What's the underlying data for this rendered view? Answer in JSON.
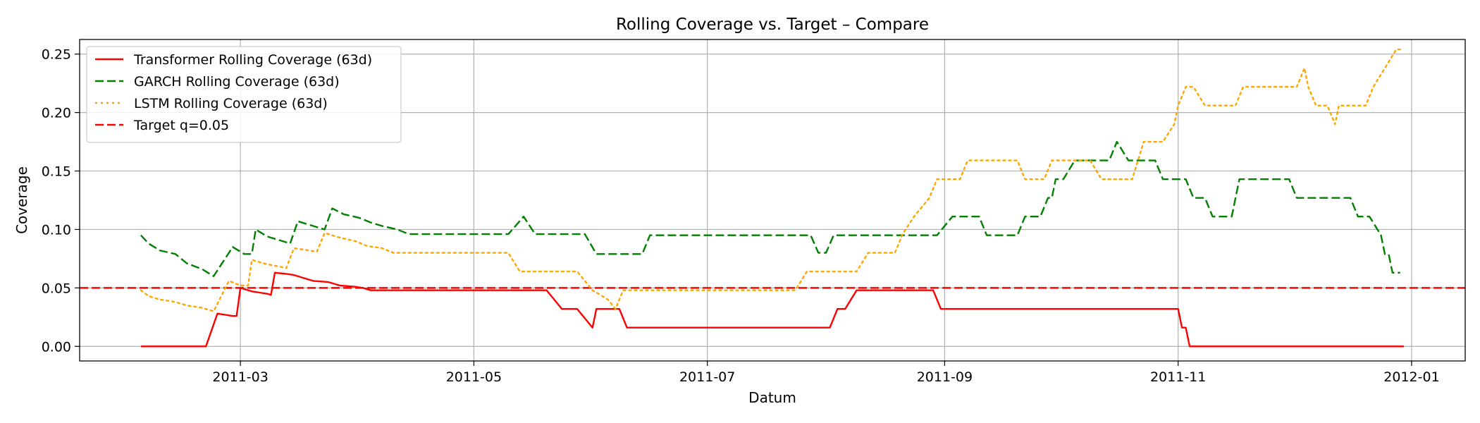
{
  "chart_data": {
    "type": "line",
    "title": "Rolling Coverage vs. Target – Compare",
    "xlabel": "Datum",
    "ylabel": "Coverage",
    "xlim": [
      "2011-01-18",
      "2012-01-15"
    ],
    "ylim": [
      -0.0125,
      0.2625
    ],
    "grid": true,
    "legend_position": "upper-left",
    "x_ticks": [
      {
        "date": "2011-03-01",
        "label": "2011-03"
      },
      {
        "date": "2011-05-01",
        "label": "2011-05"
      },
      {
        "date": "2011-07-01",
        "label": "2011-07"
      },
      {
        "date": "2011-09-01",
        "label": "2011-09"
      },
      {
        "date": "2011-11-01",
        "label": "2011-11"
      },
      {
        "date": "2012-01-01",
        "label": "2012-01"
      }
    ],
    "y_ticks": [
      {
        "value": 0.0,
        "label": "0.00"
      },
      {
        "value": 0.05,
        "label": "0.05"
      },
      {
        "value": 0.1,
        "label": "0.10"
      },
      {
        "value": 0.15,
        "label": "0.15"
      },
      {
        "value": 0.2,
        "label": "0.20"
      },
      {
        "value": 0.25,
        "label": "0.25"
      }
    ],
    "series": [
      {
        "name": "Transformer Rolling Coverage (63d)",
        "color": "#ff0000",
        "style": "solid",
        "points": [
          [
            "2011-02-03",
            0.0
          ],
          [
            "2011-02-20",
            0.0
          ],
          [
            "2011-02-23",
            0.028
          ],
          [
            "2011-02-25",
            0.027
          ],
          [
            "2011-02-27",
            0.026
          ],
          [
            "2011-02-28",
            0.026
          ],
          [
            "2011-03-01",
            0.05
          ],
          [
            "2011-03-04",
            0.047
          ],
          [
            "2011-03-06",
            0.046
          ],
          [
            "2011-03-08",
            0.045
          ],
          [
            "2011-03-09",
            0.044
          ],
          [
            "2011-03-10",
            0.063
          ],
          [
            "2011-03-13",
            0.062
          ],
          [
            "2011-03-15",
            0.061
          ],
          [
            "2011-03-18",
            0.058
          ],
          [
            "2011-03-20",
            0.056
          ],
          [
            "2011-03-24",
            0.055
          ],
          [
            "2011-03-27",
            0.052
          ],
          [
            "2011-03-31",
            0.051
          ],
          [
            "2011-04-02",
            0.05
          ],
          [
            "2011-04-04",
            0.048
          ],
          [
            "2011-05-20",
            0.048
          ],
          [
            "2011-05-24",
            0.032
          ],
          [
            "2011-05-28",
            0.032
          ],
          [
            "2011-06-01",
            0.016
          ],
          [
            "2011-06-02",
            0.032
          ],
          [
            "2011-06-08",
            0.032
          ],
          [
            "2011-06-10",
            0.016
          ],
          [
            "2011-08-02",
            0.016
          ],
          [
            "2011-08-04",
            0.032
          ],
          [
            "2011-08-06",
            0.032
          ],
          [
            "2011-08-09",
            0.048
          ],
          [
            "2011-08-29",
            0.048
          ],
          [
            "2011-08-31",
            0.032
          ],
          [
            "2011-11-01",
            0.032
          ],
          [
            "2011-11-02",
            0.016
          ],
          [
            "2011-11-03",
            0.016
          ],
          [
            "2011-11-04",
            0.0
          ],
          [
            "2011-12-30",
            0.0
          ]
        ]
      },
      {
        "name": "GARCH Rolling Coverage (63d)",
        "color": "#008000",
        "style": "dashed",
        "points": [
          [
            "2011-02-03",
            0.095
          ],
          [
            "2011-02-05",
            0.088
          ],
          [
            "2011-02-08",
            0.082
          ],
          [
            "2011-02-12",
            0.079
          ],
          [
            "2011-02-15",
            0.071
          ],
          [
            "2011-02-19",
            0.066
          ],
          [
            "2011-02-22",
            0.06
          ],
          [
            "2011-02-27",
            0.085
          ],
          [
            "2011-03-02",
            0.079
          ],
          [
            "2011-03-04",
            0.079
          ],
          [
            "2011-03-05",
            0.1
          ],
          [
            "2011-03-08",
            0.094
          ],
          [
            "2011-03-11",
            0.091
          ],
          [
            "2011-03-14",
            0.088
          ],
          [
            "2011-03-16",
            0.107
          ],
          [
            "2011-03-20",
            0.103
          ],
          [
            "2011-03-23",
            0.1
          ],
          [
            "2011-03-25",
            0.118
          ],
          [
            "2011-03-28",
            0.113
          ],
          [
            "2011-04-01",
            0.11
          ],
          [
            "2011-04-04",
            0.106
          ],
          [
            "2011-04-07",
            0.103
          ],
          [
            "2011-04-11",
            0.1
          ],
          [
            "2011-04-14",
            0.096
          ],
          [
            "2011-05-10",
            0.096
          ],
          [
            "2011-05-14",
            0.111
          ],
          [
            "2011-05-17",
            0.096
          ],
          [
            "2011-05-30",
            0.096
          ],
          [
            "2011-06-02",
            0.079
          ],
          [
            "2011-06-14",
            0.079
          ],
          [
            "2011-06-16",
            0.095
          ],
          [
            "2011-07-28",
            0.095
          ],
          [
            "2011-07-30",
            0.08
          ],
          [
            "2011-08-01",
            0.08
          ],
          [
            "2011-08-03",
            0.095
          ],
          [
            "2011-08-30",
            0.095
          ],
          [
            "2011-09-03",
            0.111
          ],
          [
            "2011-09-10",
            0.111
          ],
          [
            "2011-09-12",
            0.095
          ],
          [
            "2011-09-20",
            0.095
          ],
          [
            "2011-09-22",
            0.111
          ],
          [
            "2011-09-26",
            0.111
          ],
          [
            "2011-09-28",
            0.127
          ],
          [
            "2011-09-29",
            0.127
          ],
          [
            "2011-09-30",
            0.143
          ],
          [
            "2011-10-02",
            0.143
          ],
          [
            "2011-10-05",
            0.159
          ],
          [
            "2011-10-14",
            0.159
          ],
          [
            "2011-10-16",
            0.175
          ],
          [
            "2011-10-19",
            0.159
          ],
          [
            "2011-10-26",
            0.159
          ],
          [
            "2011-10-28",
            0.143
          ],
          [
            "2011-11-03",
            0.143
          ],
          [
            "2011-11-05",
            0.127
          ],
          [
            "2011-11-08",
            0.127
          ],
          [
            "2011-11-10",
            0.111
          ],
          [
            "2011-11-15",
            0.111
          ],
          [
            "2011-11-17",
            0.143
          ],
          [
            "2011-11-30",
            0.143
          ],
          [
            "2011-12-02",
            0.127
          ],
          [
            "2011-12-16",
            0.127
          ],
          [
            "2011-12-18",
            0.111
          ],
          [
            "2011-12-21",
            0.111
          ],
          [
            "2011-12-24",
            0.095
          ],
          [
            "2011-12-25",
            0.079
          ],
          [
            "2011-12-26",
            0.079
          ],
          [
            "2011-12-27",
            0.063
          ],
          [
            "2011-12-29",
            0.063
          ]
        ]
      },
      {
        "name": "LSTM Rolling Coverage (63d)",
        "color": "#ffa500",
        "style": "dotted",
        "points": [
          [
            "2011-02-03",
            0.048
          ],
          [
            "2011-02-05",
            0.043
          ],
          [
            "2011-02-08",
            0.04
          ],
          [
            "2011-02-12",
            0.038
          ],
          [
            "2011-02-15",
            0.035
          ],
          [
            "2011-02-19",
            0.033
          ],
          [
            "2011-02-22",
            0.03
          ],
          [
            "2011-02-26",
            0.056
          ],
          [
            "2011-03-01",
            0.052
          ],
          [
            "2011-03-03",
            0.052
          ],
          [
            "2011-03-04",
            0.074
          ],
          [
            "2011-03-07",
            0.071
          ],
          [
            "2011-03-10",
            0.069
          ],
          [
            "2011-03-13",
            0.067
          ],
          [
            "2011-03-15",
            0.084
          ],
          [
            "2011-03-19",
            0.082
          ],
          [
            "2011-03-21",
            0.081
          ],
          [
            "2011-03-23",
            0.097
          ],
          [
            "2011-03-27",
            0.093
          ],
          [
            "2011-03-31",
            0.09
          ],
          [
            "2011-04-03",
            0.086
          ],
          [
            "2011-04-07",
            0.084
          ],
          [
            "2011-04-10",
            0.08
          ],
          [
            "2011-04-13",
            0.08
          ],
          [
            "2011-05-10",
            0.08
          ],
          [
            "2011-05-13",
            0.064
          ],
          [
            "2011-05-28",
            0.064
          ],
          [
            "2011-06-01",
            0.048
          ],
          [
            "2011-06-05",
            0.04
          ],
          [
            "2011-06-07",
            0.032
          ],
          [
            "2011-06-09",
            0.048
          ],
          [
            "2011-07-24",
            0.048
          ],
          [
            "2011-07-27",
            0.064
          ],
          [
            "2011-08-09",
            0.064
          ],
          [
            "2011-08-12",
            0.08
          ],
          [
            "2011-08-19",
            0.08
          ],
          [
            "2011-08-21",
            0.096
          ],
          [
            "2011-08-24",
            0.111
          ],
          [
            "2011-08-28",
            0.127
          ],
          [
            "2011-08-30",
            0.143
          ],
          [
            "2011-09-05",
            0.143
          ],
          [
            "2011-09-07",
            0.159
          ],
          [
            "2011-09-20",
            0.159
          ],
          [
            "2011-09-22",
            0.143
          ],
          [
            "2011-09-27",
            0.143
          ],
          [
            "2011-09-29",
            0.159
          ],
          [
            "2011-10-09",
            0.159
          ],
          [
            "2011-10-12",
            0.143
          ],
          [
            "2011-10-20",
            0.143
          ],
          [
            "2011-10-23",
            0.175
          ],
          [
            "2011-10-28",
            0.175
          ],
          [
            "2011-10-31",
            0.19
          ],
          [
            "2011-11-01",
            0.206
          ],
          [
            "2011-11-03",
            0.222
          ],
          [
            "2011-11-05",
            0.222
          ],
          [
            "2011-11-08",
            0.206
          ],
          [
            "2011-11-16",
            0.206
          ],
          [
            "2011-11-18",
            0.222
          ],
          [
            "2011-12-02",
            0.222
          ],
          [
            "2011-12-04",
            0.238
          ],
          [
            "2011-12-05",
            0.222
          ],
          [
            "2011-12-07",
            0.206
          ],
          [
            "2011-12-10",
            0.206
          ],
          [
            "2011-12-12",
            0.19
          ],
          [
            "2011-12-13",
            0.206
          ],
          [
            "2011-12-20",
            0.206
          ],
          [
            "2011-12-22",
            0.222
          ],
          [
            "2011-12-25",
            0.238
          ],
          [
            "2011-12-28",
            0.254
          ],
          [
            "2011-12-29",
            0.254
          ]
        ]
      }
    ],
    "reference_lines": [
      {
        "name": "Target q=0.05",
        "value": 0.05,
        "color": "#ff0000",
        "style": "dashed"
      }
    ]
  }
}
